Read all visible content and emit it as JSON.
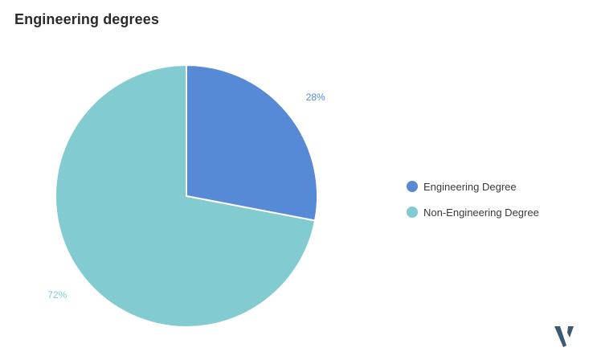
{
  "header": {
    "title": "Engineering degrees"
  },
  "chart_data": {
    "type": "pie",
    "title": "Engineering degrees",
    "categories": [
      "Engineering Degree",
      "Non-Engineering Degree"
    ],
    "values": [
      28,
      72
    ],
    "labels": [
      "28%",
      "72%"
    ],
    "colors": [
      "#5689d6",
      "#82cbd0"
    ],
    "legend_position": "right"
  },
  "legend": {
    "items": [
      {
        "label": "Engineering Degree",
        "color": "#5689d6"
      },
      {
        "label": "Non-Engineering Degree",
        "color": "#82cbd0"
      }
    ]
  },
  "brand": {
    "logo_icon": "v-logo-icon",
    "color": "#3d5a73"
  }
}
